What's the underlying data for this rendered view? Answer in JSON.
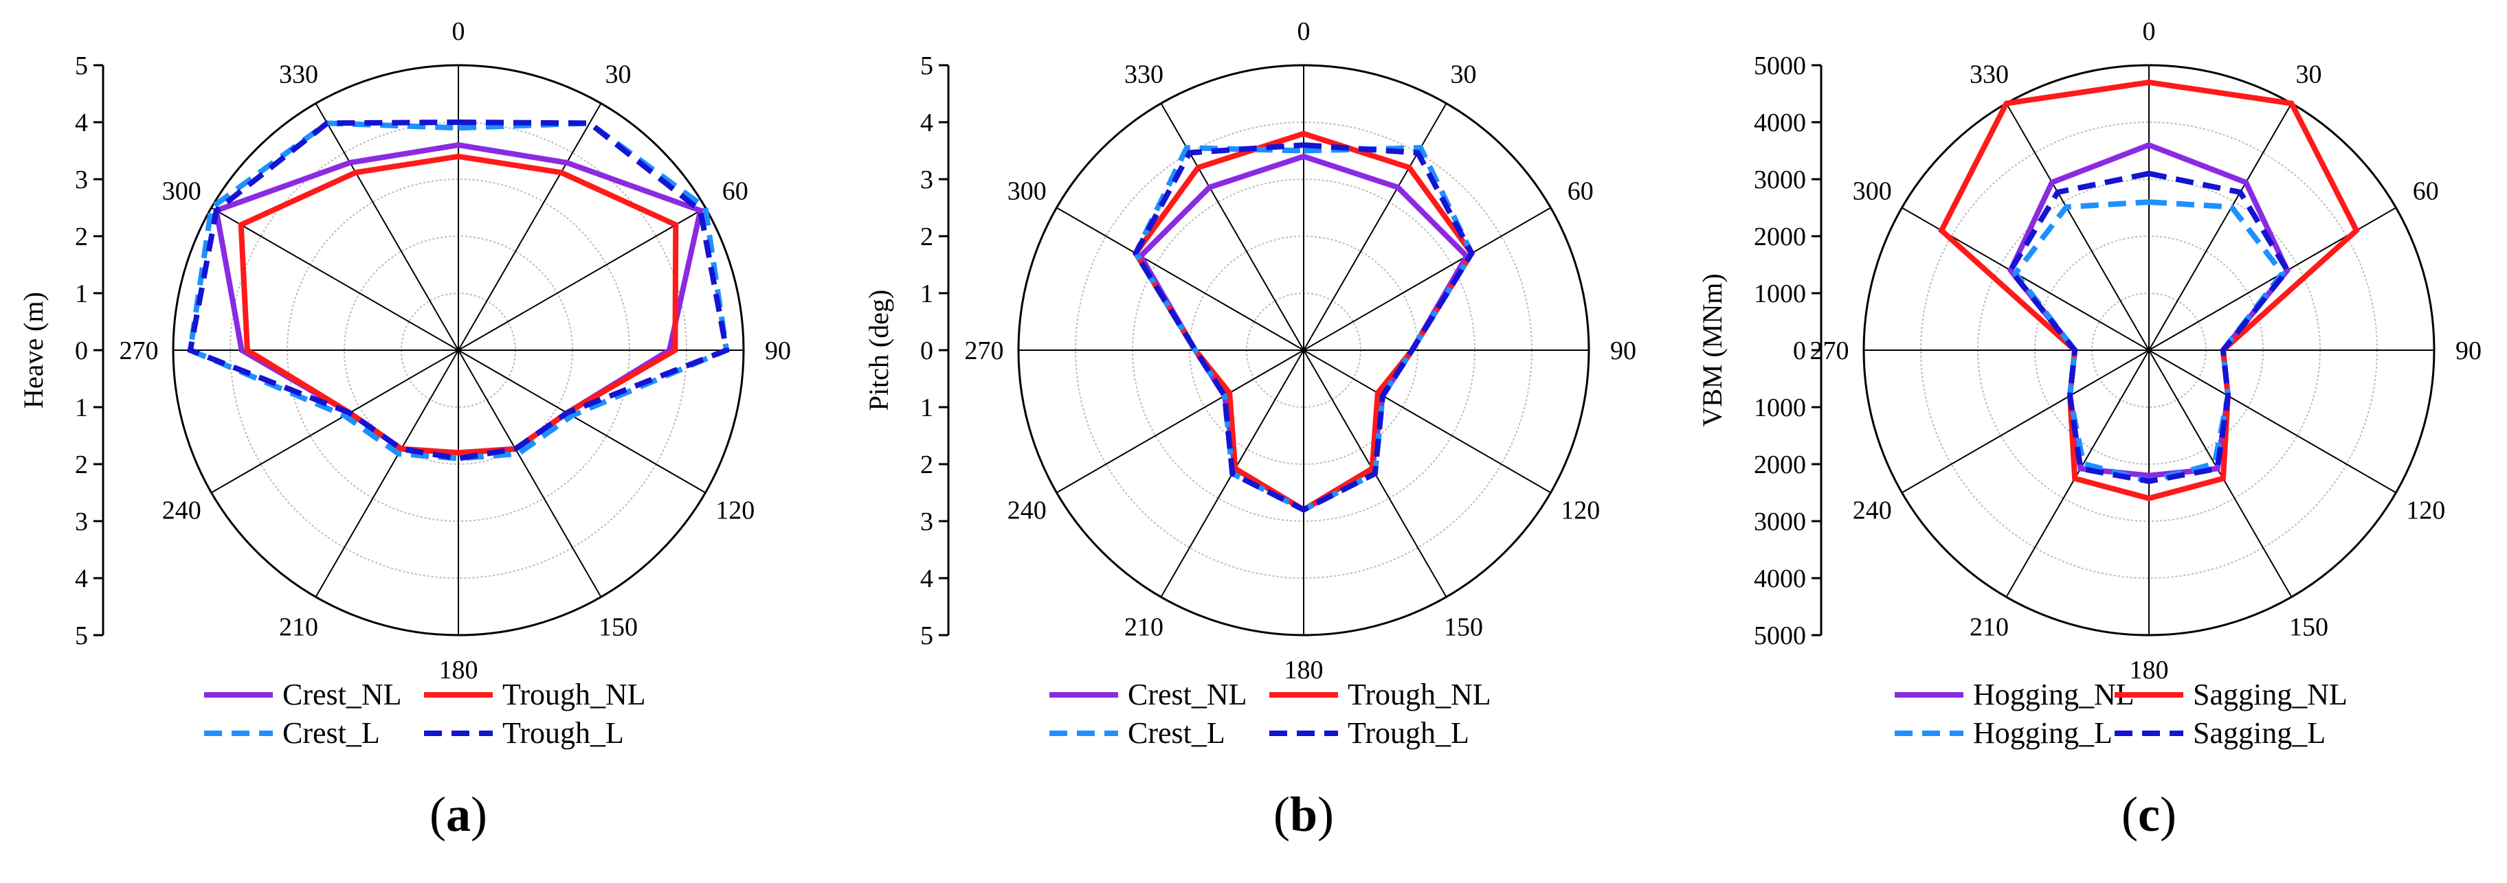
{
  "figure": {
    "panel_labels": [
      "(a)",
      "(b)",
      "(c)"
    ],
    "panel_label_letters": [
      "a",
      "b",
      "c"
    ]
  },
  "colors": {
    "purple": "#8a2be2",
    "red": "#ff1a1a",
    "lightblue": "#1e90ff",
    "darkblue": "#1414d2",
    "grid": "#bbbbbb"
  },
  "chart_data": [
    {
      "type": "polar-line",
      "title": "",
      "ylabel": "Heave (m)",
      "rlim": [
        0,
        5
      ],
      "radial_tick_labels": [
        "5",
        "4",
        "3",
        "2",
        "1",
        "0",
        "1",
        "2",
        "3",
        "4",
        "5"
      ],
      "angles": [
        0,
        30,
        60,
        90,
        120,
        150,
        180,
        210,
        240,
        270,
        300,
        330
      ],
      "angle_labels": [
        "0",
        "30",
        "60",
        "90",
        "120",
        "150",
        "180",
        "210",
        "240",
        "270",
        "300",
        "330"
      ],
      "series": [
        {
          "name": "Crest_NL",
          "color": "purple",
          "dash": "solid",
          "values": [
            3.6,
            3.8,
            4.9,
            3.7,
            2.2,
            2.0,
            1.8,
            2.0,
            2.2,
            3.8,
            4.9,
            3.8
          ]
        },
        {
          "name": "Trough_NL",
          "color": "red",
          "dash": "solid",
          "values": [
            3.4,
            3.6,
            4.4,
            3.8,
            2.2,
            2.0,
            1.8,
            2.0,
            2.2,
            3.7,
            4.4,
            3.6
          ]
        },
        {
          "name": "Crest_L",
          "color": "lightblue",
          "dash": "dashed",
          "values": [
            3.9,
            4.6,
            5.0,
            4.7,
            2.3,
            2.1,
            1.9,
            2.1,
            2.3,
            4.7,
            5.0,
            4.6
          ]
        },
        {
          "name": "Trough_L",
          "color": "darkblue",
          "dash": "dashed",
          "values": [
            4.0,
            4.6,
            4.9,
            4.7,
            2.2,
            2.0,
            1.9,
            2.0,
            2.2,
            4.7,
            4.9,
            4.6
          ]
        }
      ],
      "legend": [
        {
          "label": "Crest_NL",
          "color": "purple",
          "dash": "solid"
        },
        {
          "label": "Trough_NL",
          "color": "red",
          "dash": "solid"
        },
        {
          "label": "Crest_L",
          "color": "lightblue",
          "dash": "dashed"
        },
        {
          "label": "Trough_L",
          "color": "darkblue",
          "dash": "dashed"
        }
      ]
    },
    {
      "type": "polar-line",
      "title": "",
      "ylabel": "Pitch (deg)",
      "rlim": [
        0,
        5
      ],
      "radial_tick_labels": [
        "5",
        "4",
        "3",
        "2",
        "1",
        "0",
        "1",
        "2",
        "3",
        "4",
        "5"
      ],
      "angles": [
        0,
        30,
        60,
        90,
        120,
        150,
        180,
        210,
        240,
        270,
        300,
        330
      ],
      "angle_labels": [
        "0",
        "30",
        "60",
        "90",
        "120",
        "150",
        "180",
        "210",
        "240",
        "270",
        "300",
        "330"
      ],
      "series": [
        {
          "name": "Crest_NL",
          "color": "purple",
          "dash": "solid",
          "values": [
            3.4,
            3.3,
            3.3,
            1.9,
            1.6,
            2.4,
            2.8,
            2.4,
            1.6,
            1.9,
            3.3,
            3.3
          ]
        },
        {
          "name": "Trough_NL",
          "color": "red",
          "dash": "solid",
          "values": [
            3.8,
            3.7,
            3.4,
            1.9,
            1.5,
            2.4,
            2.8,
            2.4,
            1.5,
            1.9,
            3.4,
            3.7
          ]
        },
        {
          "name": "Crest_L",
          "color": "lightblue",
          "dash": "dashed",
          "values": [
            3.5,
            4.1,
            3.4,
            1.9,
            1.6,
            2.5,
            2.8,
            2.5,
            1.6,
            1.9,
            3.4,
            4.1
          ]
        },
        {
          "name": "Trough_L",
          "color": "darkblue",
          "dash": "dashed",
          "values": [
            3.6,
            4.0,
            3.4,
            1.9,
            1.6,
            2.5,
            2.8,
            2.5,
            1.6,
            1.9,
            3.4,
            4.0
          ]
        }
      ],
      "legend": [
        {
          "label": "Crest_NL",
          "color": "purple",
          "dash": "solid"
        },
        {
          "label": "Trough_NL",
          "color": "red",
          "dash": "solid"
        },
        {
          "label": "Crest_L",
          "color": "lightblue",
          "dash": "dashed"
        },
        {
          "label": "Trough_L",
          "color": "darkblue",
          "dash": "dashed"
        }
      ]
    },
    {
      "type": "polar-line",
      "title": "",
      "ylabel": "VBM (MNm)",
      "rlim": [
        0,
        5000
      ],
      "radial_tick_labels": [
        "5000",
        "4000",
        "3000",
        "2000",
        "1000",
        "0",
        "1000",
        "2000",
        "3000",
        "4000",
        "5000"
      ],
      "angles": [
        0,
        30,
        60,
        90,
        120,
        150,
        180,
        210,
        240,
        270,
        300,
        330
      ],
      "angle_labels": [
        "0",
        "30",
        "60",
        "90",
        "120",
        "150",
        "180",
        "210",
        "240",
        "270",
        "300",
        "330"
      ],
      "series": [
        {
          "name": "Hogging_NL",
          "color": "purple",
          "dash": "solid",
          "values": [
            3600,
            3400,
            2800,
            1300,
            1600,
            2400,
            2200,
            2400,
            1600,
            1300,
            2800,
            3400
          ]
        },
        {
          "name": "Sagging_NL",
          "color": "red",
          "dash": "solid",
          "values": [
            4700,
            5000,
            4200,
            1300,
            1600,
            2600,
            2600,
            2600,
            1600,
            1300,
            4200,
            5000
          ]
        },
        {
          "name": "Hogging_L",
          "color": "lightblue",
          "dash": "dashed",
          "values": [
            2600,
            2900,
            2700,
            1300,
            1600,
            2300,
            2300,
            2300,
            1600,
            1300,
            2700,
            2900
          ]
        },
        {
          "name": "Sagging_L",
          "color": "darkblue",
          "dash": "dashed",
          "values": [
            3100,
            3200,
            2800,
            1300,
            1600,
            2400,
            2300,
            2400,
            1600,
            1300,
            2800,
            3200
          ]
        }
      ],
      "legend": [
        {
          "label": "Hogging_NL",
          "color": "purple",
          "dash": "solid"
        },
        {
          "label": "Sagging_NL",
          "color": "red",
          "dash": "solid"
        },
        {
          "label": "Hogging_L",
          "color": "lightblue",
          "dash": "dashed"
        },
        {
          "label": "Sagging_L",
          "color": "darkblue",
          "dash": "dashed"
        }
      ]
    }
  ]
}
